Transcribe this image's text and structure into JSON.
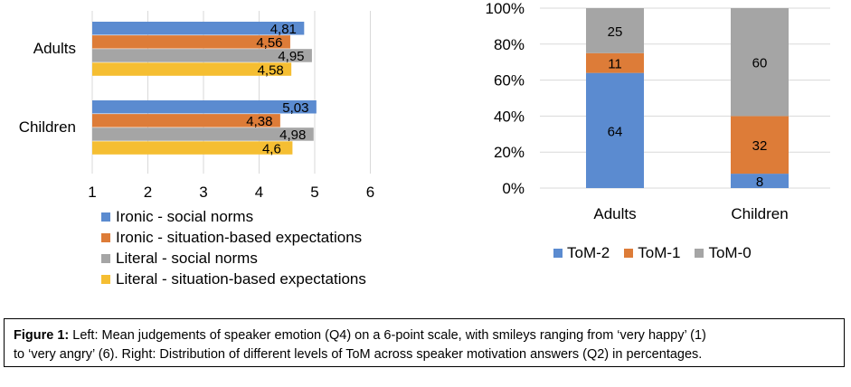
{
  "colors": {
    "blue": "#5B8BD0",
    "orange": "#DD7C38",
    "gray": "#A5A5A5",
    "yellow": "#F5BE32",
    "grid": "#D9D9D9"
  },
  "chart_data": [
    {
      "type": "bar",
      "orientation": "horizontal",
      "categories": [
        "Adults",
        "Children"
      ],
      "series": [
        {
          "name": "Ironic - social norms",
          "color": "#5B8BD0",
          "values": [
            4.81,
            5.03
          ],
          "labels": [
            "4,81",
            "5,03"
          ]
        },
        {
          "name": "Ironic - situation-based expectations",
          "color": "#DD7C38",
          "values": [
            4.56,
            4.38
          ],
          "labels": [
            "4,56",
            "4,38"
          ]
        },
        {
          "name": "Literal - social norms",
          "color": "#A5A5A5",
          "values": [
            4.95,
            4.98
          ],
          "labels": [
            "4,95",
            "4,98"
          ]
        },
        {
          "name": "Literal - situation-based expectations",
          "color": "#F5BE32",
          "values": [
            4.58,
            4.6
          ],
          "labels": [
            "4,58",
            "4,6"
          ]
        }
      ],
      "xlim": [
        1,
        6
      ],
      "xticks": [
        "1",
        "2",
        "3",
        "4",
        "5",
        "6"
      ],
      "grid": true,
      "legend": "bottom"
    },
    {
      "type": "bar",
      "stacked": "percent",
      "categories": [
        "Adults",
        "Children"
      ],
      "series": [
        {
          "name": "ToM-2",
          "color": "#5B8BD0",
          "values": [
            64,
            8
          ]
        },
        {
          "name": "ToM-1",
          "color": "#DD7C38",
          "values": [
            11,
            32
          ]
        },
        {
          "name": "ToM-0",
          "color": "#A5A5A5",
          "values": [
            25,
            60
          ]
        }
      ],
      "ylim": [
        0,
        100
      ],
      "yticks": [
        "0%",
        "20%",
        "40%",
        "60%",
        "80%",
        "100%"
      ],
      "grid": true,
      "legend": "bottom"
    }
  ],
  "caption": {
    "label": "Figure 1:",
    "line1": " Left: Mean judgements of speaker emotion (Q4) on a 6-point scale, with smileys ranging from ‘very happy’ (1)",
    "line2": "to ‘very angry’ (6). Right: Distribution of different levels of ToM across speaker motivation answers (Q2) in percentages."
  }
}
